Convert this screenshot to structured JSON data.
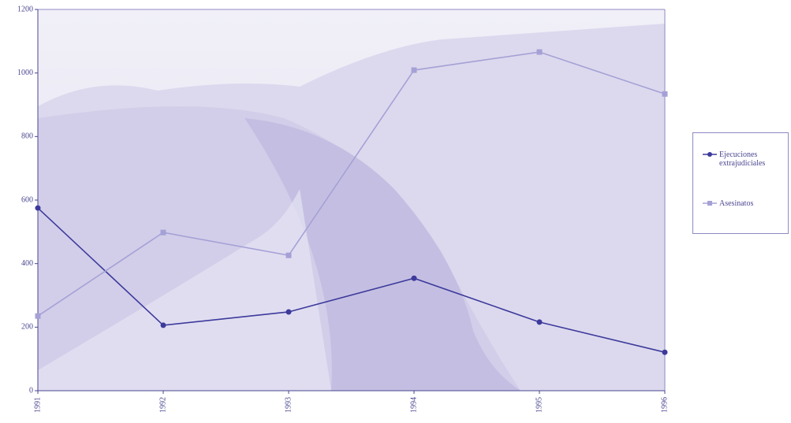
{
  "chart_data": {
    "type": "line",
    "categories": [
      "1991",
      "1992",
      "1993",
      "1994",
      "1995",
      "1996"
    ],
    "series": [
      {
        "name": "Ejecuciones extrajudiciales",
        "color": "#3d3a9c",
        "values": [
          575,
          206,
          248,
          354,
          216,
          121
        ]
      },
      {
        "name": "Asesinatos",
        "color": "#a5a1d6",
        "values": [
          235,
          498,
          426,
          1009,
          1066,
          934
        ]
      }
    ],
    "ylim": [
      0,
      1200
    ],
    "yticks": [
      0,
      200,
      400,
      600,
      800,
      1000,
      1200
    ]
  }
}
